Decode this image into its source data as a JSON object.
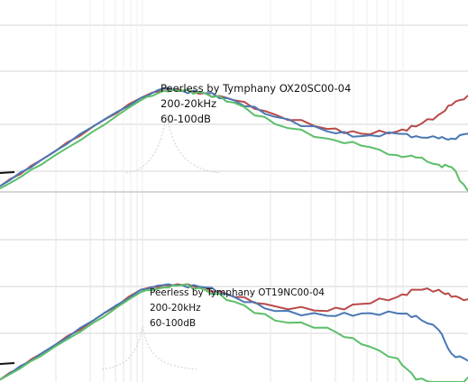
{
  "colors": {
    "red": "#b94a4a",
    "blue": "#4a78b4",
    "green": "#5cbf6a",
    "grid": "#d4d4d4",
    "divider": "#bdbdbd",
    "faint": "#cfcfcf"
  },
  "chart_data": [
    {
      "type": "line",
      "caption": {
        "model": "Peerless by Tymphany OX20SC00-04",
        "freq_range": "200-20kHz",
        "level_range": "60-100dB"
      },
      "xlim": [
        200,
        20000
      ],
      "ylim": [
        60,
        100
      ],
      "xscale": "log",
      "grid": true,
      "series": [
        {
          "color": "red",
          "x": [
            200,
            300,
            500,
            800,
            1000,
            1200,
            1500,
            2000,
            3000,
            5000,
            7000,
            10000,
            12000,
            15000,
            17000,
            20000
          ],
          "y": [
            61,
            66.5,
            73.5,
            79.5,
            81.5,
            81,
            80.5,
            79,
            76,
            73,
            72,
            72.5,
            73.5,
            76,
            78,
            80
          ]
        },
        {
          "color": "blue",
          "x": [
            200,
            300,
            500,
            800,
            1000,
            1200,
            1500,
            2000,
            3000,
            5000,
            7000,
            10000,
            12000,
            15000,
            17000,
            20000
          ],
          "y": [
            61,
            66.5,
            73.5,
            79.5,
            81.5,
            81,
            80.5,
            79,
            75.5,
            72.5,
            71.5,
            72,
            71.5,
            71,
            71,
            72
          ]
        },
        {
          "color": "green",
          "x": [
            200,
            300,
            500,
            800,
            1000,
            1200,
            1500,
            2000,
            3000,
            5000,
            7000,
            10000,
            12000,
            15000,
            17000,
            20000
          ],
          "y": [
            60.5,
            65.5,
            72.5,
            79,
            81,
            81,
            80.5,
            78.5,
            74,
            71,
            69.5,
            67.5,
            67,
            65.5,
            65,
            60
          ]
        }
      ]
    },
    {
      "type": "line",
      "caption": {
        "model": "Peerless by Tymphany OT19NC00-04",
        "freq_range": "200-20kHz",
        "level_range": "60-100dB"
      },
      "xlim": [
        200,
        20000
      ],
      "ylim": [
        60,
        100
      ],
      "xscale": "log",
      "grid": true,
      "series": [
        {
          "color": "red",
          "x": [
            200,
            300,
            500,
            800,
            1000,
            1200,
            1500,
            2000,
            3000,
            5000,
            7000,
            10000,
            12000,
            15000,
            17000,
            20000
          ],
          "y": [
            60.5,
            66,
            73,
            79.5,
            80.5,
            80.5,
            80,
            78,
            76,
            75,
            76.5,
            78,
            79.5,
            79.5,
            78,
            77.5
          ]
        },
        {
          "color": "blue",
          "x": [
            200,
            300,
            500,
            800,
            1000,
            1200,
            1500,
            2000,
            3000,
            5000,
            7000,
            10000,
            12000,
            15000,
            17000,
            20000
          ],
          "y": [
            60.5,
            66,
            73,
            79.5,
            80.5,
            80.5,
            80,
            78,
            75,
            74,
            74.5,
            74.5,
            74,
            71,
            66,
            64.5
          ]
        },
        {
          "color": "green",
          "x": [
            200,
            300,
            500,
            800,
            1000,
            1200,
            1500,
            2000,
            3000,
            5000,
            7000,
            10000,
            12000,
            15000,
            17000,
            20000
          ],
          "y": [
            60.5,
            65.5,
            72.5,
            79,
            80,
            80.5,
            79.5,
            77,
            73,
            71.5,
            68,
            65,
            60.5,
            60,
            52,
            61
          ]
        }
      ]
    }
  ]
}
